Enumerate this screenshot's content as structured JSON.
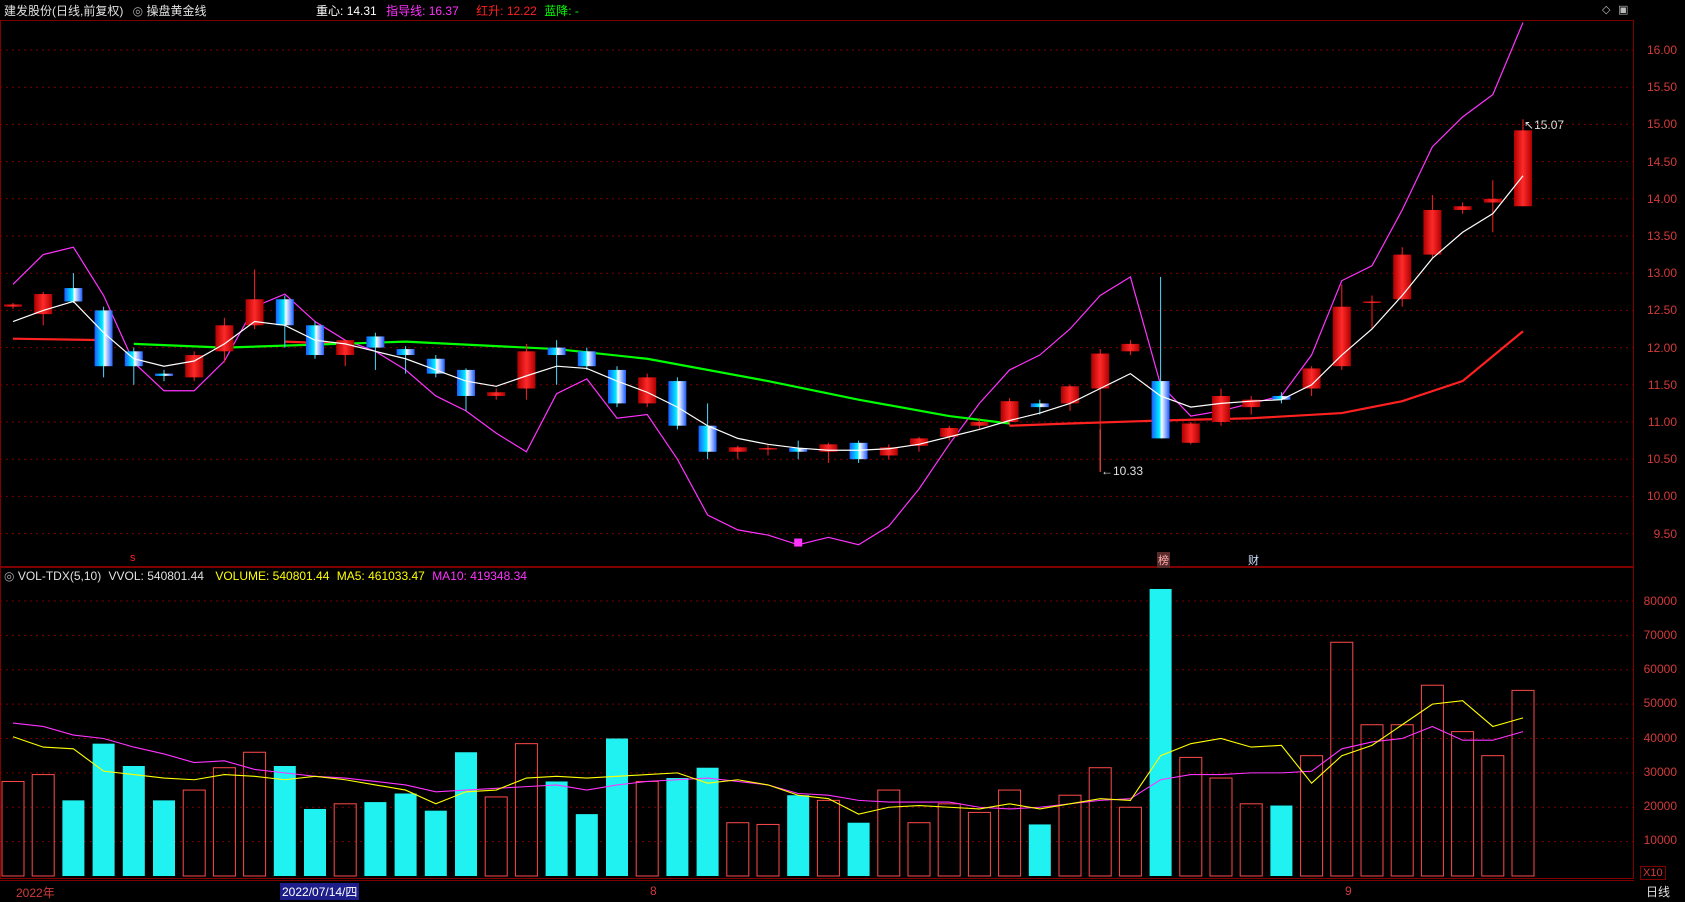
{
  "header": {
    "stock_title": "建发股份(日线,前复权)",
    "indicator_name": "操盘黄金线",
    "zx_label": "重心:",
    "zx_value": "14.31",
    "zdx_label": "指导线:",
    "zdx_value": "16.37",
    "hs_label": "红升:",
    "hs_value": "12.22",
    "lj_label": "蓝降:",
    "lj_value": "-"
  },
  "vol_header": {
    "name": "VOL-TDX(5,10)",
    "vvol_label": "VVOL:",
    "vvol_value": "540801.44",
    "volume_label": "VOLUME:",
    "volume_value": "540801.44",
    "ma5_label": "MA5:",
    "ma5_value": "461033.47",
    "ma10_label": "MA10:",
    "ma10_value": "419348.34"
  },
  "annotations": {
    "high_label": "15.07",
    "low_label": "10.33",
    "marker_s": "s",
    "marker_bang": "榜",
    "marker_cai": "财"
  },
  "price_axis": [
    "16.00",
    "15.50",
    "15.00",
    "14.50",
    "14.00",
    "13.50",
    "13.00",
    "12.50",
    "12.00",
    "11.50",
    "11.00",
    "10.50",
    "10.00",
    "9.50"
  ],
  "volume_axis": [
    "80000",
    "70000",
    "60000",
    "50000",
    "40000",
    "30000",
    "20000",
    "10000"
  ],
  "volume_unit": "X10",
  "footer": {
    "date_labels": [
      "2022年",
      "2022/07/14/四",
      "8",
      "9"
    ],
    "period": "日线"
  },
  "colors": {
    "up": "#ff2020",
    "down": "#00e8ff",
    "grid": "#7a0000",
    "center": "#ffffff",
    "guide": "#ff33ff",
    "red_rise": "#ff2020",
    "blue_fall": "#00ff00",
    "ma5": "#ffff00",
    "ma10": "#ff33ff"
  },
  "candles": [
    [
      12.55,
      12.6,
      12.52,
      12.58
    ],
    [
      12.45,
      12.75,
      12.3,
      12.72
    ],
    [
      12.8,
      13.0,
      12.6,
      12.62
    ],
    [
      12.5,
      12.55,
      11.6,
      11.75
    ],
    [
      11.95,
      12.0,
      11.5,
      11.75
    ],
    [
      11.65,
      11.7,
      11.55,
      11.62
    ],
    [
      11.6,
      11.95,
      11.55,
      11.9
    ],
    [
      11.95,
      12.4,
      11.8,
      12.3
    ],
    [
      12.3,
      13.05,
      12.25,
      12.65
    ],
    [
      12.65,
      12.7,
      12.0,
      12.3
    ],
    [
      12.3,
      12.35,
      11.85,
      11.9
    ],
    [
      11.9,
      12.1,
      11.75,
      12.1
    ],
    [
      12.15,
      12.2,
      11.7,
      12.0
    ],
    [
      11.98,
      12.02,
      11.65,
      11.9
    ],
    [
      11.85,
      11.9,
      11.6,
      11.65
    ],
    [
      11.7,
      11.72,
      11.15,
      11.35
    ],
    [
      11.35,
      11.45,
      11.3,
      11.4
    ],
    [
      11.45,
      12.05,
      11.3,
      11.95
    ],
    [
      12.0,
      12.1,
      11.5,
      11.9
    ],
    [
      11.95,
      12.0,
      11.7,
      11.75
    ],
    [
      11.7,
      11.75,
      11.2,
      11.25
    ],
    [
      11.25,
      11.65,
      11.2,
      11.6
    ],
    [
      11.55,
      11.6,
      10.9,
      10.95
    ],
    [
      10.95,
      11.25,
      10.5,
      10.6
    ],
    [
      10.6,
      10.68,
      10.5,
      10.66
    ],
    [
      10.64,
      10.7,
      10.55,
      10.65
    ],
    [
      10.65,
      10.75,
      10.5,
      10.6
    ],
    [
      10.6,
      10.72,
      10.45,
      10.7
    ],
    [
      10.72,
      10.75,
      10.45,
      10.5
    ],
    [
      10.55,
      10.7,
      10.5,
      10.66
    ],
    [
      10.68,
      10.8,
      10.6,
      10.78
    ],
    [
      10.8,
      10.95,
      10.75,
      10.92
    ],
    [
      10.95,
      11.05,
      10.9,
      11.0
    ],
    [
      11.0,
      11.32,
      10.95,
      11.28
    ],
    [
      11.25,
      11.3,
      11.1,
      11.2
    ],
    [
      11.25,
      11.5,
      11.15,
      11.48
    ],
    [
      11.45,
      11.98,
      10.33,
      11.92
    ],
    [
      11.95,
      12.1,
      11.9,
      12.05
    ],
    [
      11.55,
      12.95,
      10.78,
      10.78
    ],
    [
      10.72,
      11.0,
      10.7,
      10.98
    ],
    [
      11.0,
      11.45,
      10.95,
      11.35
    ],
    [
      11.2,
      11.35,
      11.1,
      11.3
    ],
    [
      11.35,
      11.4,
      11.25,
      11.3
    ],
    [
      11.45,
      11.75,
      11.35,
      11.72
    ],
    [
      11.75,
      12.85,
      11.7,
      12.55
    ],
    [
      12.6,
      12.7,
      12.25,
      12.62
    ],
    [
      12.65,
      13.35,
      12.55,
      13.25
    ],
    [
      13.25,
      14.05,
      13.2,
      13.85
    ],
    [
      13.85,
      13.95,
      13.8,
      13.9
    ],
    [
      13.95,
      14.25,
      13.55,
      14.0
    ],
    [
      13.9,
      15.07,
      13.9,
      14.92
    ]
  ],
  "center_line": [
    12.35,
    12.5,
    12.62,
    12.2,
    11.85,
    11.75,
    11.82,
    12.05,
    12.35,
    12.3,
    12.1,
    12.05,
    11.95,
    11.85,
    11.7,
    11.55,
    11.48,
    11.62,
    11.75,
    11.72,
    11.55,
    11.4,
    11.2,
    10.95,
    10.78,
    10.7,
    10.65,
    10.62,
    10.62,
    10.64,
    10.7,
    10.8,
    10.9,
    11.02,
    11.12,
    11.25,
    11.45,
    11.65,
    11.35,
    11.2,
    11.25,
    11.28,
    11.3,
    11.5,
    11.9,
    12.25,
    12.7,
    13.2,
    13.55,
    13.8,
    14.31
  ],
  "guide_line": [
    12.85,
    13.25,
    13.35,
    12.7,
    11.8,
    11.42,
    11.42,
    11.82,
    12.55,
    12.72,
    12.35,
    12.1,
    11.95,
    11.7,
    11.35,
    11.15,
    10.85,
    10.6,
    11.38,
    11.58,
    11.05,
    11.1,
    10.5,
    9.75,
    9.55,
    9.48,
    9.35,
    9.45,
    9.35,
    9.6,
    10.1,
    10.7,
    11.25,
    11.7,
    11.9,
    12.25,
    12.7,
    12.95,
    11.5,
    11.08,
    11.15,
    11.25,
    11.35,
    11.9,
    12.9,
    13.1,
    13.85,
    14.7,
    15.1,
    15.4,
    16.37
  ],
  "red_rise": [
    [
      0,
      12.12
    ],
    [
      3,
      12.1
    ],
    [
      4,
      null
    ],
    [
      9,
      12.08
    ],
    [
      11,
      12.05
    ],
    [
      32,
      null
    ],
    [
      33,
      10.95
    ],
    [
      35,
      10.98
    ],
    [
      38,
      11.02
    ],
    [
      41,
      11.05
    ],
    [
      44,
      11.12
    ],
    [
      46,
      11.28
    ],
    [
      48,
      11.55
    ],
    [
      50,
      12.22
    ]
  ],
  "blue_fall": [
    [
      4,
      12.05
    ],
    [
      7,
      12.0
    ],
    [
      13,
      12.08
    ],
    [
      18,
      11.98
    ],
    [
      21,
      11.85
    ],
    [
      25,
      11.55
    ],
    [
      28,
      11.3
    ],
    [
      31,
      11.08
    ],
    [
      33,
      10.98
    ]
  ],
  "volumes": [
    27500,
    29500,
    22000,
    38500,
    32000,
    22000,
    25000,
    31500,
    36000,
    32000,
    19500,
    21000,
    21500,
    24000,
    19000,
    36000,
    23000,
    38500,
    27500,
    18000,
    40000,
    27500,
    28500,
    31500,
    15500,
    15000,
    23500,
    22000,
    15500,
    25000,
    15500,
    21000,
    18500,
    25000,
    15000,
    23500,
    31500,
    20000,
    83500,
    34500,
    28500,
    21000,
    20500,
    35000,
    68000,
    44000,
    44000,
    55500,
    42000,
    35000,
    54000
  ],
  "ma5": [
    40500,
    37500,
    37000,
    30500,
    29500,
    28500,
    28000,
    29500,
    29000,
    28000,
    29000,
    28000,
    26500,
    25000,
    21000,
    24500,
    25000,
    28500,
    29000,
    28500,
    29000,
    29500,
    30000,
    27000,
    28000,
    26500,
    23500,
    22500,
    18000,
    20000,
    20500,
    20000,
    19500,
    21000,
    19500,
    21000,
    22500,
    22000,
    35000,
    38500,
    40000,
    37500,
    38000,
    27000,
    35000,
    38000,
    44000,
    50000,
    51000,
    43500,
    46000
  ],
  "ma10": [
    44500,
    43500,
    41000,
    40000,
    37500,
    35500,
    33000,
    33500,
    31000,
    30000,
    29000,
    28500,
    27500,
    26500,
    24500,
    25000,
    25500,
    26000,
    26500,
    25000,
    26500,
    27500,
    28000,
    28500,
    27500,
    26500,
    24000,
    23500,
    22000,
    21500,
    21500,
    21500,
    20000,
    19500,
    20000,
    21000,
    22000,
    22500,
    28000,
    29500,
    29500,
    30000,
    30000,
    30500,
    37000,
    39000,
    40000,
    43500,
    39500,
    39500,
    42000
  ]
}
